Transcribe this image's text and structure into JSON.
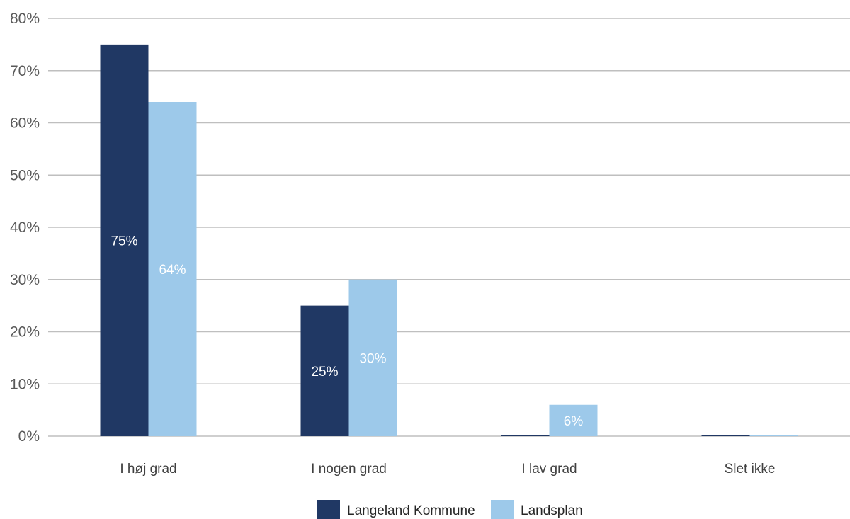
{
  "chart_data": {
    "type": "bar",
    "categories": [
      "I høj grad",
      "I nogen grad",
      "I lav grad",
      "Slet ikke"
    ],
    "series": [
      {
        "name": "Langeland Kommune",
        "values": [
          75,
          25,
          0,
          0
        ],
        "labels": [
          "75%",
          "25%",
          "",
          ""
        ],
        "color": "#203864"
      },
      {
        "name": "Landsplan",
        "values": [
          64,
          30,
          6,
          0
        ],
        "labels": [
          "64%",
          "30%",
          "6%",
          ""
        ],
        "color": "#9dc9ea"
      }
    ],
    "ylim": [
      0,
      80
    ],
    "yticks": [
      0,
      10,
      20,
      30,
      40,
      50,
      60,
      70,
      80
    ],
    "ytick_labels": [
      "0%",
      "10%",
      "20%",
      "30%",
      "40%",
      "50%",
      "60%",
      "70%",
      "80%"
    ],
    "grid": true,
    "legend_position": "bottom-center",
    "title": "",
    "xlabel": "",
    "ylabel": ""
  }
}
